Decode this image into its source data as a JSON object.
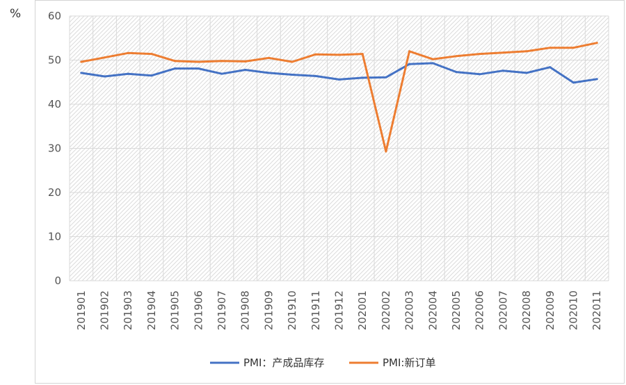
{
  "chart_data": {
    "type": "line",
    "unit_label": "%",
    "categories": [
      "201901",
      "201902",
      "201903",
      "201904",
      "201905",
      "201906",
      "201907",
      "201908",
      "201909",
      "201910",
      "201911",
      "201912",
      "202001",
      "202002",
      "202003",
      "202004",
      "202005",
      "202006",
      "202007",
      "202008",
      "202009",
      "202010",
      "202011"
    ],
    "ylim": [
      0,
      60
    ],
    "yticks": [
      0,
      10,
      20,
      30,
      40,
      50,
      60
    ],
    "grid": true,
    "legend_position": "bottom",
    "series": [
      {
        "name": "PMI：产成品库存",
        "color": "#4472C4",
        "values": [
          47.1,
          46.3,
          46.9,
          46.5,
          48.1,
          48.1,
          46.9,
          47.8,
          47.1,
          46.7,
          46.4,
          45.6,
          46.0,
          46.1,
          49.1,
          49.3,
          47.3,
          46.8,
          47.6,
          47.1,
          48.4,
          44.9,
          45.7
        ]
      },
      {
        "name": "PMI:新订单",
        "color": "#ED7D31",
        "values": [
          49.6,
          50.6,
          51.6,
          51.4,
          49.8,
          49.6,
          49.8,
          49.7,
          50.5,
          49.6,
          51.3,
          51.2,
          51.4,
          29.3,
          52.0,
          50.2,
          50.9,
          51.4,
          51.7,
          52.0,
          52.8,
          52.8,
          53.9
        ]
      }
    ]
  }
}
